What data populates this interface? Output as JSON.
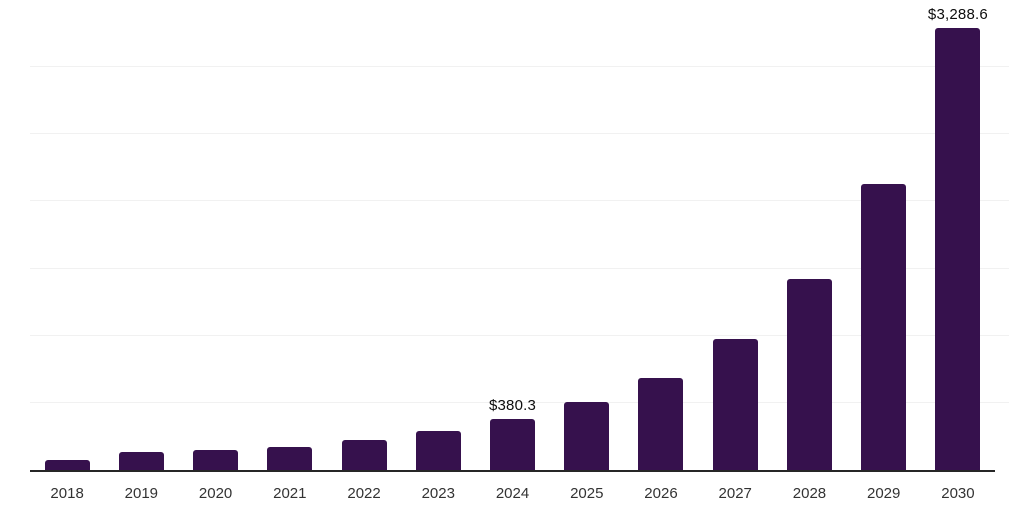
{
  "chart_data": {
    "type": "bar",
    "title": "",
    "xlabel": "",
    "ylabel": "",
    "categories": [
      "2018",
      "2019",
      "2020",
      "2021",
      "2022",
      "2023",
      "2024",
      "2025",
      "2026",
      "2027",
      "2028",
      "2029",
      "2030"
    ],
    "values": [
      77,
      134,
      149,
      172,
      224,
      288,
      380.3,
      507,
      686,
      974,
      1421,
      2128,
      3288.6
    ],
    "bar_labels": [
      "",
      "",
      "",
      "",
      "",
      "",
      "$380.3",
      "",
      "",
      "",
      "",
      "",
      "$3,288.6"
    ],
    "ylim": [
      0,
      3500
    ],
    "gridline_step": 500,
    "grid": true,
    "legend": "none",
    "y_axis_labels_visible": false,
    "colors": {
      "bar": "#36114D",
      "gridline": "#f1f1f1",
      "axis_line": "#262626",
      "tick_label": "#333333",
      "value_label": "#0d0d0d",
      "background": "#ffffff"
    }
  }
}
